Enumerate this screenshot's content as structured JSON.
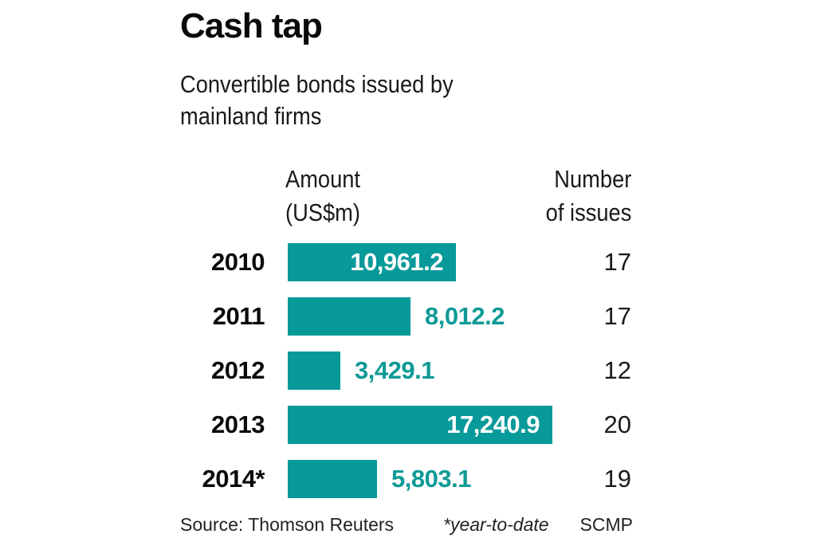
{
  "header": {
    "title": "Cash tap",
    "subtitle": "Convertible bonds issued by mainland firms"
  },
  "columns": {
    "amount_line1": "Amount",
    "amount_line2": "(US$m)",
    "count_line1": "Number",
    "count_line2": "of issues"
  },
  "colors": {
    "bar": "#08999A",
    "value_outside": "#0E9A96",
    "value_inside": "#FFFFFF"
  },
  "rows": [
    {
      "year": "2010",
      "amount": 10961.2,
      "amount_label": "10,961.2",
      "issues": "17",
      "label_inside": true
    },
    {
      "year": "2011",
      "amount": 8012.2,
      "amount_label": "8,012.2",
      "issues": "17",
      "label_inside": false
    },
    {
      "year": "2012",
      "amount": 3429.1,
      "amount_label": "3,429.1",
      "issues": "12",
      "label_inside": false
    },
    {
      "year": "2013",
      "amount": 17240.9,
      "amount_label": "17,240.9",
      "issues": "20",
      "label_inside": true
    },
    {
      "year": "2014*",
      "amount": 5803.1,
      "amount_label": "5,803.1",
      "issues": "19",
      "label_inside": false
    }
  ],
  "footer": {
    "source": "Source: Thomson Reuters",
    "note": "*year-to-date",
    "brand": "SCMP"
  },
  "chart_data": {
    "type": "bar",
    "orientation": "horizontal",
    "title": "Cash tap",
    "subtitle": "Convertible bonds issued by mainland firms",
    "categories": [
      "2010",
      "2011",
      "2012",
      "2013",
      "2014*"
    ],
    "series": [
      {
        "name": "Amount (US$m)",
        "values": [
          10961.2,
          8012.2,
          3429.1,
          17240.9,
          5803.1
        ]
      },
      {
        "name": "Number of issues",
        "values": [
          17,
          17,
          12,
          20,
          19
        ]
      }
    ],
    "xlabel": "Amount (US$m)",
    "ylabel": "",
    "grid": false,
    "legend": "none",
    "annotations": [
      "*year-to-date"
    ],
    "source": "Source: Thomson Reuters",
    "credit": "SCMP"
  }
}
